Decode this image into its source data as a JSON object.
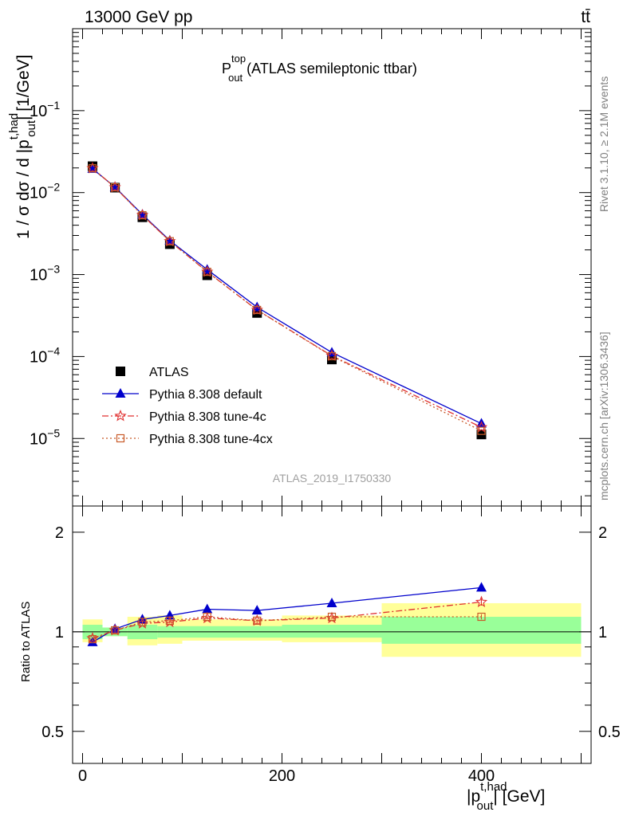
{
  "header": {
    "left": "13000 GeV pp",
    "right": "tt̄"
  },
  "title": {
    "main": "P",
    "sup": "top",
    "sub": "out",
    "rest": " (ATLAS semileptonic ttbar)"
  },
  "side_labels": {
    "rivet": "Rivet 3.1.10, ≥ 2.1M events",
    "mcplots": "mcplots.cern.ch [arXiv:1306.3436]"
  },
  "watermark": "ATLAS_2019_I1750330",
  "ylabel_main": {
    "pre": "1 / σ dσ / d |p",
    "sup": "t,had",
    "sub": "out",
    "post": "| [1/GeV]"
  },
  "ylabel_ratio": "Ratio to ATLAS",
  "xlabel": {
    "pre": "|p",
    "sup": "t,had",
    "sub": "out",
    "post": "| [GeV]"
  },
  "colors": {
    "data": "#000000",
    "default": "#0000cc",
    "tune4c": "#e03030",
    "tune4cx": "#c85a28",
    "band_inner": "#99ff99",
    "band_outer": "#ffff99"
  },
  "chart_data": {
    "type": "line",
    "x_edges": [
      0,
      20,
      45,
      75,
      100,
      150,
      200,
      300,
      500
    ],
    "x": [
      10,
      32.5,
      60,
      87.5,
      125,
      175,
      250,
      400
    ],
    "xlim": [
      -10,
      510
    ],
    "xticks": [
      0,
      200,
      400
    ],
    "main": {
      "scale": "log",
      "ylim": [
        1.5e-06,
        1
      ],
      "yticks": [
        {
          "v": 0.1,
          "m": "10",
          "e": "−1"
        },
        {
          "v": 0.01,
          "m": "10",
          "e": "−2"
        },
        {
          "v": 0.001,
          "m": "10",
          "e": "−3"
        },
        {
          "v": 0.0001,
          "m": "10",
          "e": "−4"
        },
        {
          "v": 1e-05,
          "m": "10",
          "e": "−5"
        }
      ]
    },
    "ratio": {
      "scale": "log",
      "ylim": [
        0.4,
        2.4
      ],
      "yticks": [
        {
          "v": 0.5,
          "label": "0.5"
        },
        {
          "v": 1,
          "label": "1"
        },
        {
          "v": 2,
          "label": "2"
        }
      ],
      "band_inner": [
        [
          0.95,
          1.05
        ],
        [
          0.97,
          1.03
        ],
        [
          0.95,
          1.05
        ],
        [
          0.96,
          1.04
        ],
        [
          0.96,
          1.04
        ],
        [
          0.96,
          1.04
        ],
        [
          0.96,
          1.05
        ],
        [
          0.92,
          1.11
        ]
      ],
      "band_outer": [
        [
          0.93,
          1.09
        ],
        [
          0.97,
          1.03
        ],
        [
          0.91,
          1.11
        ],
        [
          0.92,
          1.12
        ],
        [
          0.94,
          1.09
        ],
        [
          0.94,
          1.09
        ],
        [
          0.93,
          1.12
        ],
        [
          0.84,
          1.22
        ]
      ]
    },
    "series": [
      {
        "name": "ATLAS",
        "key": "data",
        "marker": "square",
        "values": [
          0.021,
          0.0115,
          0.005,
          0.00235,
          0.00098,
          0.00034,
          9.2e-05,
          1.12e-05
        ]
      },
      {
        "name": "Pythia 8.308 default",
        "key": "default",
        "marker": "triangle",
        "dash": "",
        "values": [
          0.0195,
          0.0117,
          0.0054,
          0.0026,
          0.00115,
          0.0004,
          0.000112,
          1.52e-05
        ],
        "ratio": [
          0.93,
          1.02,
          1.09,
          1.12,
          1.17,
          1.16,
          1.22,
          1.36
        ],
        "ratio_err": [
          0.01,
          0.01,
          0.01,
          0.01,
          0.01,
          0.01,
          0.01,
          0.03
        ]
      },
      {
        "name": "Pythia 8.308 tune-4c",
        "key": "tune4c",
        "marker": "star",
        "dash": "8,3,2,3",
        "values": [
          0.0198,
          0.0116,
          0.0053,
          0.00255,
          0.00108,
          0.00037,
          0.000102,
          1.37e-05
        ],
        "ratio": [
          0.955,
          1.01,
          1.06,
          1.07,
          1.1,
          1.08,
          1.1,
          1.23
        ],
        "ratio_err": [
          0.01,
          0.01,
          0.01,
          0.01,
          0.01,
          0.01,
          0.01,
          0.03
        ]
      },
      {
        "name": "Pythia 8.308 tune-4cx",
        "key": "tune4cx",
        "marker": "opensquare",
        "dash": "2,3",
        "values": [
          0.0198,
          0.0116,
          0.0053,
          0.00255,
          0.00108,
          0.00037,
          0.000101,
          1.24e-05
        ],
        "ratio": [
          0.95,
          1.01,
          1.07,
          1.08,
          1.11,
          1.08,
          1.11,
          1.11
        ],
        "ratio_err": [
          0.01,
          0.01,
          0.01,
          0.01,
          0.01,
          0.01,
          0.01,
          0.02
        ]
      }
    ]
  }
}
